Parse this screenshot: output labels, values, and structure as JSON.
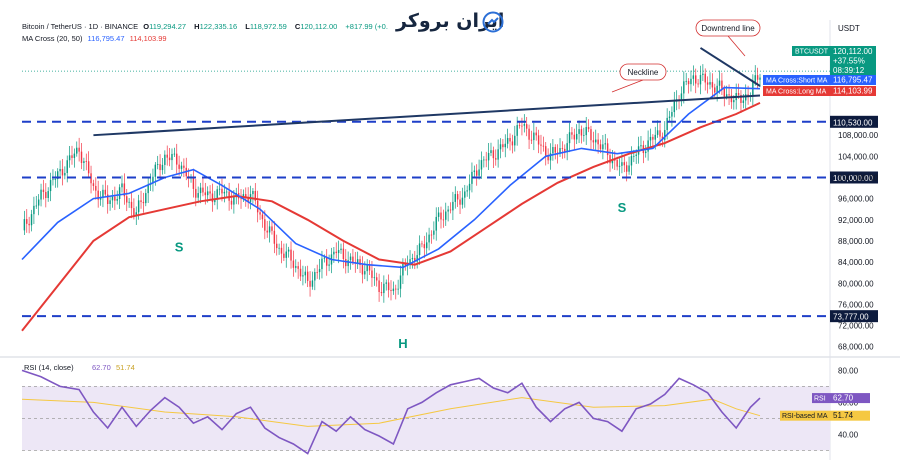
{
  "header": {
    "symbol": "Bitcoin / TetherUS · 1D · BINANCE",
    "open_label": "O",
    "open": "119,294.27",
    "high_label": "H",
    "high": "122,335.16",
    "low_label": "L",
    "low": "118,972.59",
    "close_label": "C",
    "close": "120,112.00",
    "change": "+817.99 (+0.",
    "ma_label": "MA Cross (20, 50)",
    "ma_short_val": "116,795.47",
    "ma_long_val": "114,103.99",
    "ma_short_color": "#2962ff",
    "ma_long_color": "#e53935"
  },
  "brand": {
    "name": "ایران بروکر"
  },
  "price_axis": {
    "unit": "USDT"
  },
  "colors": {
    "up": "#089981",
    "down": "#f23645",
    "ma_short": "#2962ff",
    "ma_long": "#e53935",
    "level": "#1e3fc8",
    "trend": "#1f3864",
    "rsi": "#7e57c2",
    "rsi_ma": "#f5c842",
    "rsi_band": "#ede7f6",
    "pattern_label": "#089981",
    "callout": "#d32f2f"
  },
  "chart_data": [
    {
      "type": "candlestick",
      "symbol": "BTCUSDT",
      "timeframe": "1D",
      "ylim": [
        67000,
        126000
      ],
      "y_ticks": [
        68000,
        72000,
        76000,
        80000,
        84000,
        88000,
        92000,
        96000,
        100000,
        104000,
        108000
      ],
      "y_tick_labels": [
        "68,000.00",
        "72,000.00",
        "76,000.00",
        "80,000.00",
        "84,000.00",
        "88,000.00",
        "92,000.00",
        "96,000.00",
        "100,000.00",
        "104,000.00",
        "108,000.00"
      ],
      "grid": false,
      "close_path": [
        [
          0,
          90000
        ],
        [
          8,
          96500
        ],
        [
          16,
          101000
        ],
        [
          24,
          105500
        ],
        [
          30,
          98000
        ],
        [
          36,
          95500
        ],
        [
          42,
          97500
        ],
        [
          48,
          93000
        ],
        [
          54,
          99500
        ],
        [
          60,
          104000
        ],
        [
          66,
          103000
        ],
        [
          72,
          98000
        ],
        [
          78,
          96500
        ],
        [
          84,
          97200
        ],
        [
          90,
          95800
        ],
        [
          96,
          97000
        ],
        [
          102,
          91000
        ],
        [
          108,
          86500
        ],
        [
          114,
          84000
        ],
        [
          120,
          80000
        ],
        [
          126,
          83500
        ],
        [
          132,
          86000
        ],
        [
          138,
          84200
        ],
        [
          144,
          83000
        ],
        [
          150,
          79500
        ],
        [
          156,
          78500
        ],
        [
          162,
          84000
        ],
        [
          168,
          86500
        ],
        [
          174,
          91500
        ],
        [
          180,
          94500
        ],
        [
          186,
          97000
        ],
        [
          192,
          102500
        ],
        [
          198,
          104500
        ],
        [
          204,
          106500
        ],
        [
          210,
          110000
        ],
        [
          216,
          107000
        ],
        [
          222,
          104000
        ],
        [
          228,
          106000
        ],
        [
          234,
          109000
        ],
        [
          240,
          107500
        ],
        [
          246,
          104500
        ],
        [
          252,
          101500
        ],
        [
          258,
          104500
        ],
        [
          264,
          107000
        ],
        [
          270,
          109000
        ],
        [
          276,
          116000
        ],
        [
          282,
          119000
        ],
        [
          288,
          118000
        ],
        [
          294,
          116500
        ],
        [
          300,
          114500
        ],
        [
          306,
          116000
        ],
        [
          310,
          120112
        ]
      ],
      "ma_short": {
        "name": "MA Cross:Short MA",
        "value": "116,795.47",
        "points": [
          [
            0,
            84500
          ],
          [
            15,
            91500
          ],
          [
            30,
            96000
          ],
          [
            45,
            97000
          ],
          [
            60,
            100000
          ],
          [
            72,
            101500
          ],
          [
            84,
            98500
          ],
          [
            100,
            94000
          ],
          [
            115,
            87500
          ],
          [
            130,
            84500
          ],
          [
            145,
            83500
          ],
          [
            160,
            83000
          ],
          [
            175,
            86500
          ],
          [
            190,
            92000
          ],
          [
            205,
            98500
          ],
          [
            220,
            104000
          ],
          [
            235,
            105500
          ],
          [
            250,
            104500
          ],
          [
            265,
            105500
          ],
          [
            280,
            112000
          ],
          [
            295,
            117000
          ],
          [
            310,
            116795
          ]
        ]
      },
      "ma_long": {
        "name": "MA Cross:Long MA",
        "value": "114,103.99",
        "points": [
          [
            0,
            71000
          ],
          [
            15,
            79500
          ],
          [
            30,
            88000
          ],
          [
            45,
            92500
          ],
          [
            60,
            94000
          ],
          [
            75,
            95500
          ],
          [
            90,
            96500
          ],
          [
            105,
            95500
          ],
          [
            120,
            92000
          ],
          [
            135,
            88000
          ],
          [
            150,
            84500
          ],
          [
            165,
            83500
          ],
          [
            180,
            86000
          ],
          [
            195,
            90500
          ],
          [
            210,
            95000
          ],
          [
            225,
            99000
          ],
          [
            240,
            102000
          ],
          [
            255,
            104500
          ],
          [
            270,
            106500
          ],
          [
            285,
            109500
          ],
          [
            300,
            112000
          ],
          [
            310,
            114104
          ]
        ]
      },
      "levels": [
        {
          "price": 110530,
          "label": "110,530.00"
        },
        {
          "price": 100000,
          "label": "100,000.00"
        },
        {
          "price": 73777,
          "label": "73,777.00"
        }
      ],
      "price_tags": [
        {
          "name": "BTCUSDT",
          "lines": [
            "120,112.00",
            "+37.55%",
            "08:39:12"
          ]
        },
        {
          "name": "MA Cross:Short MA",
          "value": "116,795.47"
        },
        {
          "name": "MA Cross:Long MA",
          "value": "114,103.99"
        }
      ],
      "neckline": {
        "from": [
          30,
          108000
        ],
        "to": [
          310,
          115500
        ],
        "label": "Neckline"
      },
      "downtrend_line": {
        "from": [
          285,
          124500
        ],
        "to": [
          310,
          117300
        ],
        "label": "Downtrend line"
      },
      "pattern_labels": [
        {
          "text": "S",
          "x": 66,
          "price": 86000
        },
        {
          "text": "H",
          "x": 160,
          "price": 67800
        },
        {
          "text": "S",
          "x": 252,
          "price": 93500
        }
      ]
    },
    {
      "type": "line",
      "name": "RSI",
      "header": "RSI (14, close)",
      "value": "62.70",
      "ma_value": "51.74",
      "ma_name": "RSI-based MA",
      "ylim": [
        24,
        84
      ],
      "y_ticks": [
        40,
        60,
        80
      ],
      "y_tick_labels": [
        "40.00",
        "60.00",
        "80.00"
      ],
      "band": [
        30,
        70
      ],
      "points": [
        [
          0,
          80
        ],
        [
          8,
          76
        ],
        [
          16,
          70
        ],
        [
          24,
          68
        ],
        [
          30,
          54
        ],
        [
          36,
          44
        ],
        [
          42,
          57
        ],
        [
          48,
          45
        ],
        [
          54,
          55
        ],
        [
          60,
          63
        ],
        [
          66,
          57
        ],
        [
          72,
          47
        ],
        [
          78,
          51
        ],
        [
          84,
          43
        ],
        [
          90,
          53
        ],
        [
          96,
          57
        ],
        [
          102,
          44
        ],
        [
          108,
          38
        ],
        [
          114,
          34
        ],
        [
          120,
          28
        ],
        [
          126,
          48
        ],
        [
          132,
          42
        ],
        [
          138,
          51
        ],
        [
          144,
          43
        ],
        [
          150,
          39
        ],
        [
          156,
          34
        ],
        [
          162,
          56
        ],
        [
          168,
          60
        ],
        [
          174,
          66
        ],
        [
          180,
          71
        ],
        [
          186,
          73
        ],
        [
          192,
          75
        ],
        [
          198,
          69
        ],
        [
          204,
          66
        ],
        [
          210,
          72
        ],
        [
          216,
          57
        ],
        [
          222,
          48
        ],
        [
          228,
          56
        ],
        [
          234,
          60
        ],
        [
          240,
          50
        ],
        [
          246,
          48
        ],
        [
          252,
          42
        ],
        [
          258,
          56
        ],
        [
          264,
          59
        ],
        [
          270,
          65
        ],
        [
          276,
          75
        ],
        [
          282,
          71
        ],
        [
          288,
          66
        ],
        [
          294,
          54
        ],
        [
          300,
          44
        ],
        [
          306,
          57
        ],
        [
          310,
          62.7
        ]
      ],
      "ma_points": [
        [
          0,
          62
        ],
        [
          30,
          60
        ],
        [
          60,
          54
        ],
        [
          90,
          51
        ],
        [
          120,
          45
        ],
        [
          150,
          47
        ],
        [
          180,
          56
        ],
        [
          210,
          63
        ],
        [
          240,
          57
        ],
        [
          270,
          58
        ],
        [
          290,
          62
        ],
        [
          300,
          56
        ],
        [
          310,
          51.7
        ]
      ]
    }
  ]
}
